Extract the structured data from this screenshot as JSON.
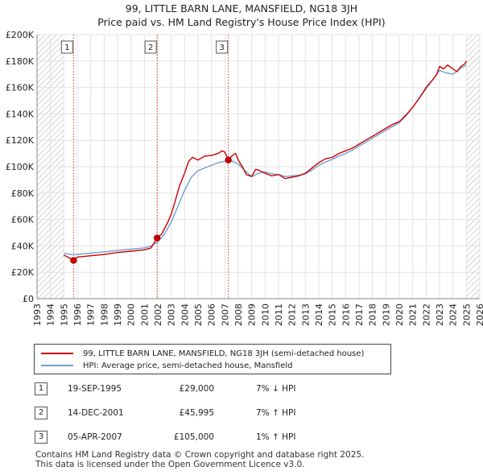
{
  "title_line1": "99, LITTLE BARN LANE, MANSFIELD, NG18 3JH",
  "title_line2": "Price paid vs. HM Land Registry's House Price Index (HPI)",
  "colors": {
    "property": "#cc0000",
    "hpi": "#6f9fd2",
    "hatch": "#aaaaaa",
    "badge_border": "#555555"
  },
  "chart_data": {
    "type": "line",
    "xlim": [
      1993,
      2026
    ],
    "ylim": [
      0,
      200000
    ],
    "x_ticks": [
      "1993",
      "1994",
      "1995",
      "1996",
      "1997",
      "1998",
      "1999",
      "2000",
      "2001",
      "2002",
      "2003",
      "2004",
      "2005",
      "2006",
      "2007",
      "2008",
      "2009",
      "2010",
      "2011",
      "2012",
      "2013",
      "2014",
      "2015",
      "2016",
      "2017",
      "2018",
      "2019",
      "2020",
      "2021",
      "2022",
      "2023",
      "2024",
      "2025",
      "2026"
    ],
    "y_ticks": [
      "£0",
      "£20K",
      "£40K",
      "£60K",
      "£80K",
      "£100K",
      "£120K",
      "£140K",
      "£160K",
      "£180K",
      "£200K"
    ],
    "hatched_ranges": [
      [
        1993,
        1995.0
      ],
      [
        2025.0,
        2026
      ]
    ],
    "grid": true,
    "series": [
      {
        "name": "99, LITTLE BARN LANE, MANSFIELD, NG18 3JH (semi-detached house)",
        "color": "#cc0000",
        "x": [
          1995.0,
          1995.3,
          1995.72,
          1996.0,
          1997.0,
          1998.0,
          1999.0,
          2000.0,
          2001.0,
          2001.5,
          2001.95,
          2002.3,
          2002.7,
          2003.0,
          2003.3,
          2003.6,
          2004.0,
          2004.3,
          2004.6,
          2005.0,
          2005.5,
          2006.0,
          2006.5,
          2006.8,
          2007.0,
          2007.26,
          2007.5,
          2007.8,
          2008.0,
          2008.3,
          2008.6,
          2009.0,
          2009.3,
          2009.6,
          2010.0,
          2010.5,
          2011.0,
          2011.5,
          2012.0,
          2012.5,
          2013.0,
          2013.5,
          2014.0,
          2014.5,
          2015.0,
          2015.5,
          2016.0,
          2016.5,
          2017.0,
          2017.5,
          2018.0,
          2018.5,
          2019.0,
          2019.5,
          2020.0,
          2020.5,
          2021.0,
          2021.5,
          2022.0,
          2022.5,
          2022.8,
          2023.0,
          2023.3,
          2023.6,
          2024.0,
          2024.3,
          2024.6,
          2024.9,
          2025.0
        ],
        "y": [
          33000,
          31500,
          29000,
          31500,
          32500,
          33500,
          35000,
          36000,
          37000,
          38500,
          45995,
          49000,
          57000,
          64000,
          74000,
          85000,
          95000,
          104000,
          107000,
          105000,
          108000,
          108500,
          110000,
          112000,
          111000,
          105000,
          108000,
          110000,
          105000,
          100000,
          94000,
          92500,
          98000,
          97000,
          95000,
          93000,
          94000,
          91000,
          92000,
          93000,
          95000,
          99000,
          103000,
          106000,
          107000,
          110000,
          112000,
          114000,
          117000,
          120000,
          123000,
          126000,
          129000,
          132000,
          134000,
          139000,
          145000,
          152000,
          160000,
          166000,
          170000,
          176000,
          174000,
          177000,
          174000,
          172000,
          176000,
          178000,
          180000
        ]
      },
      {
        "name": "HPI: Average price, semi-detached house, Mansfield",
        "color": "#6f9fd2",
        "x": [
          1995.0,
          1995.5,
          1996.0,
          1997.0,
          1998.0,
          1999.0,
          2000.0,
          2001.0,
          2001.5,
          2002.0,
          2002.5,
          2003.0,
          2003.5,
          2004.0,
          2004.5,
          2005.0,
          2005.5,
          2006.0,
          2006.5,
          2007.0,
          2007.5,
          2008.0,
          2008.5,
          2009.0,
          2009.5,
          2010.0,
          2010.5,
          2011.0,
          2011.5,
          2012.0,
          2012.5,
          2013.0,
          2013.5,
          2014.0,
          2014.5,
          2015.0,
          2015.5,
          2016.0,
          2016.5,
          2017.0,
          2017.5,
          2018.0,
          2018.5,
          2019.0,
          2019.5,
          2020.0,
          2020.5,
          2021.0,
          2021.5,
          2022.0,
          2022.5,
          2023.0,
          2023.5,
          2024.0,
          2024.5,
          2025.0
        ],
        "y": [
          34500,
          33500,
          33500,
          34500,
          35500,
          36500,
          37500,
          38500,
          40000,
          43000,
          49000,
          58000,
          70000,
          82000,
          92000,
          97000,
          99000,
          101000,
          103000,
          104000,
          104500,
          102000,
          97000,
          92500,
          95000,
          96000,
          94500,
          94000,
          92500,
          93000,
          93500,
          94500,
          97500,
          101000,
          103500,
          105500,
          108000,
          110000,
          112500,
          115500,
          118500,
          121500,
          124500,
          127500,
          130500,
          133500,
          138500,
          145000,
          152000,
          159000,
          166000,
          173000,
          171000,
          170000,
          174000,
          177000
        ]
      }
    ],
    "sales": [
      {
        "label": "1",
        "x": 1995.72,
        "y": 29000
      },
      {
        "label": "2",
        "x": 2001.95,
        "y": 45995
      },
      {
        "label": "3",
        "x": 2007.26,
        "y": 105000
      }
    ]
  },
  "legend": {
    "property": "99, LITTLE BARN LANE, MANSFIELD, NG18 3JH (semi-detached house)",
    "hpi": "HPI: Average price, semi-detached house, Mansfield"
  },
  "sales_table": [
    {
      "label": "1",
      "date": "19-SEP-1995",
      "price": "£29,000",
      "hpi": "7% ↓ HPI"
    },
    {
      "label": "2",
      "date": "14-DEC-2001",
      "price": "£45,995",
      "hpi": "7% ↑ HPI"
    },
    {
      "label": "3",
      "date": "05-APR-2007",
      "price": "£105,000",
      "hpi": "1% ↑ HPI"
    }
  ],
  "footer": {
    "line1": "Contains HM Land Registry data © Crown copyright and database right 2025.",
    "line2": "This data is licensed under the Open Government Licence v3.0."
  }
}
